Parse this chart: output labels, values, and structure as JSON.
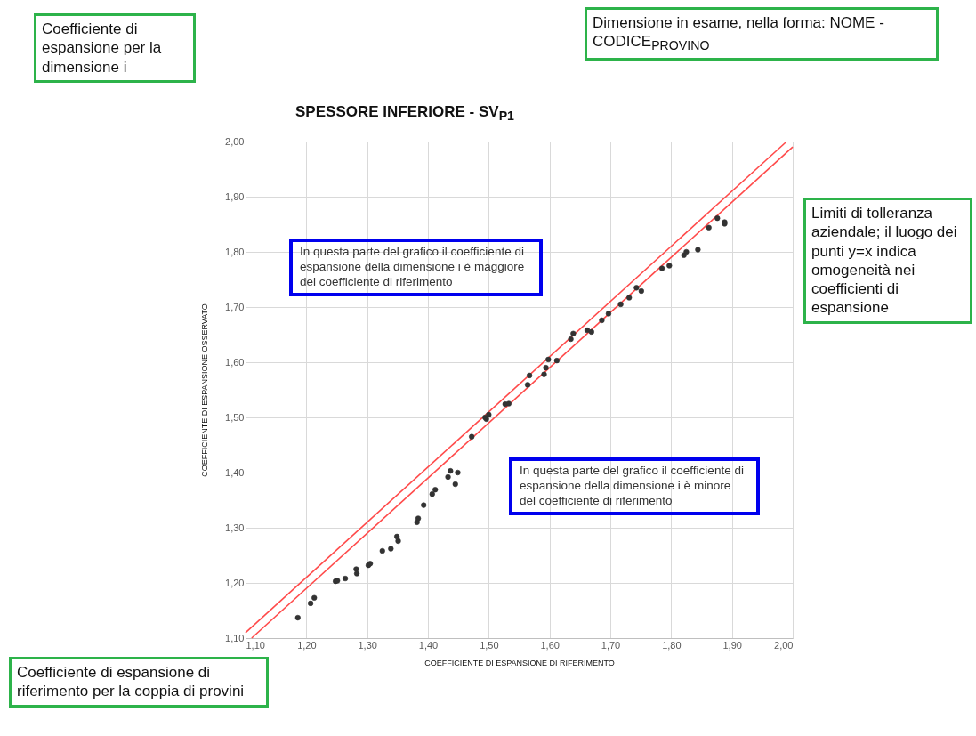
{
  "chart_data": {
    "type": "scatter",
    "title": "SPESSORE INFERIORE - SV$_{P1}$",
    "xlabel": "COEFFICIENTE DI ESPANSIONE DI RIFERIMENTO",
    "ylabel": "COEFFICIENTE DI ESPANSIONE OSSERVATO",
    "xlim": [
      1.1,
      2.0
    ],
    "ylim": [
      1.1,
      2.0
    ],
    "xticks": [
      {
        "value": 1.1,
        "label": "1,10"
      },
      {
        "value": 1.2,
        "label": "1,20"
      },
      {
        "value": 1.3,
        "label": "1,30"
      },
      {
        "value": 1.4,
        "label": "1,40"
      },
      {
        "value": 1.5,
        "label": "1,50"
      },
      {
        "value": 1.6,
        "label": "1,60"
      },
      {
        "value": 1.7,
        "label": "1,70"
      },
      {
        "value": 1.8,
        "label": "1,80"
      },
      {
        "value": 1.9,
        "label": "1,90"
      },
      {
        "value": 2.0,
        "label": "2,00"
      }
    ],
    "yticks": [
      {
        "value": 1.1,
        "label": "1,10"
      },
      {
        "value": 1.2,
        "label": "1,20"
      },
      {
        "value": 1.3,
        "label": "1,30"
      },
      {
        "value": 1.4,
        "label": "1,40"
      },
      {
        "value": 1.5,
        "label": "1,50"
      },
      {
        "value": 1.6,
        "label": "1,60"
      },
      {
        "value": 1.7,
        "label": "1,70"
      },
      {
        "value": 1.8,
        "label": "1,80"
      },
      {
        "value": 1.9,
        "label": "1,90"
      },
      {
        "value": 2.0,
        "label": "2,00"
      }
    ],
    "grid": true,
    "series": [
      {
        "type": "line",
        "color": "#ff4a4a",
        "marker": "none",
        "x": [
          1.1,
          1.99
        ],
        "values": [
          1.11,
          2.0
        ]
      },
      {
        "type": "line",
        "color": "#ff4a4a",
        "marker": "none",
        "x": [
          1.11,
          2.0
        ],
        "values": [
          1.1,
          1.99
        ]
      },
      {
        "type": "scatter",
        "color": "#333333",
        "marker": "circle",
        "x": [
          1.186,
          1.207,
          1.213,
          1.248,
          1.251,
          1.264,
          1.282,
          1.283,
          1.302,
          1.305,
          1.325,
          1.339,
          1.349,
          1.351,
          1.382,
          1.384,
          1.393,
          1.407,
          1.412,
          1.433,
          1.437,
          1.445,
          1.449,
          1.472,
          1.494,
          1.5,
          1.496,
          1.527,
          1.533,
          1.564,
          1.567,
          1.591,
          1.594,
          1.598,
          1.612,
          1.635,
          1.639,
          1.662,
          1.669,
          1.686,
          1.697,
          1.717,
          1.731,
          1.743,
          1.751,
          1.785,
          1.797,
          1.821,
          1.825,
          1.844,
          1.862,
          1.876,
          1.888,
          1.888
        ],
        "values": [
          1.137,
          1.163,
          1.173,
          1.203,
          1.204,
          1.208,
          1.225,
          1.217,
          1.232,
          1.235,
          1.258,
          1.262,
          1.284,
          1.276,
          1.31,
          1.317,
          1.341,
          1.361,
          1.369,
          1.392,
          1.403,
          1.379,
          1.4,
          1.465,
          1.5,
          1.505,
          1.497,
          1.524,
          1.525,
          1.559,
          1.576,
          1.578,
          1.59,
          1.605,
          1.603,
          1.642,
          1.652,
          1.658,
          1.655,
          1.676,
          1.688,
          1.705,
          1.717,
          1.735,
          1.729,
          1.77,
          1.775,
          1.794,
          1.8,
          1.804,
          1.844,
          1.861,
          1.854,
          1.851
        ]
      }
    ],
    "annotations": [
      "Coefficiente di espansione per la dimensione i",
      "Dimensione in esame, nella forma: NOME - CODICE$_{PROVINO}$",
      "Limiti di tolleranza aziendale; il luogo dei punti y=x indica omogeneità nei coefficienti di espansione",
      "Coefficiente di espansione di riferimento per la coppia di provini",
      "In questa parte del grafico il coefficiente di espansione della dimensione i è maggiore del coefficiente di riferimento",
      "In questa parte del grafico il coefficiente di espansione della dimensione i è minore del coefficiente di riferimento"
    ]
  }
}
